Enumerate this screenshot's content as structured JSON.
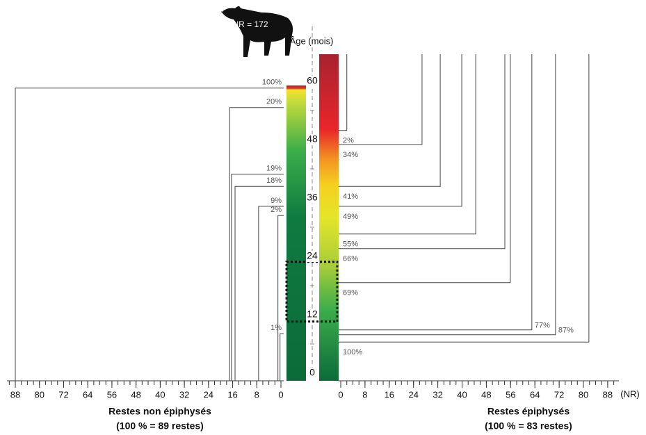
{
  "chart_data": {
    "type": "bracket",
    "icon_label": "NR = 172",
    "age_axis": {
      "label": "Âge (mois)",
      "ylim": [
        0,
        60
      ],
      "yticks": [
        0,
        12,
        24,
        36,
        48,
        60
      ],
      "minor_step": 6
    },
    "highlight": [
      10.6,
      22.9
    ],
    "left": {
      "title": "Restes non épiphysés",
      "subtitle": "(100 % = 89 restes)",
      "xlim": [
        0,
        91
      ],
      "xticks": [
        0,
        8,
        16,
        24,
        32,
        40,
        48,
        56,
        64,
        72,
        80,
        88
      ],
      "minor_step": 2,
      "brackets": [
        {
          "label": "100%",
          "age": 58.6,
          "nr": 88
        },
        {
          "label": "20%",
          "age": 54.6,
          "nr": 17
        },
        {
          "label": "19%",
          "age": 40.9,
          "nr": 16.4
        },
        {
          "label": "18%",
          "age": 38.4,
          "nr": 15.2
        },
        {
          "label": "9%",
          "age": 34.3,
          "nr": 7.4
        },
        {
          "label": "2%",
          "age": 32.4,
          "nr": 1
        },
        {
          "label": "1%",
          "age": 8.1,
          "nr": 0.3
        }
      ]
    },
    "right": {
      "title": "Restes épiphysés",
      "subtitle": "(100 % = 83 restes)",
      "unit_label": "(NR)",
      "xlim": [
        0,
        91
      ],
      "xticks": [
        0,
        8,
        16,
        24,
        32,
        40,
        48,
        56,
        64,
        72,
        80,
        88
      ],
      "minor_step": 2,
      "brackets": [
        {
          "label": "2%",
          "age": 49.9,
          "nr": 2
        },
        {
          "label": "34%",
          "age": 47,
          "nr": 26.8
        },
        {
          "label": "41%",
          "age": 38.4,
          "nr": 32.8
        },
        {
          "label": "49%",
          "age": 34.3,
          "nr": 39.9
        },
        {
          "label": "55%",
          "age": 28.6,
          "nr": 44.5
        },
        {
          "label": "66%",
          "age": 25.6,
          "nr": 54.1
        },
        {
          "label": "69%",
          "age": 18.6,
          "nr": 55.9
        },
        {
          "label": "77%",
          "age": 8.9,
          "nr": 63
        },
        {
          "label": "87%",
          "age": 7.9,
          "nr": 70.8
        },
        {
          "label": "100%",
          "age": 6.4,
          "nr": 81.8
        }
      ]
    }
  }
}
